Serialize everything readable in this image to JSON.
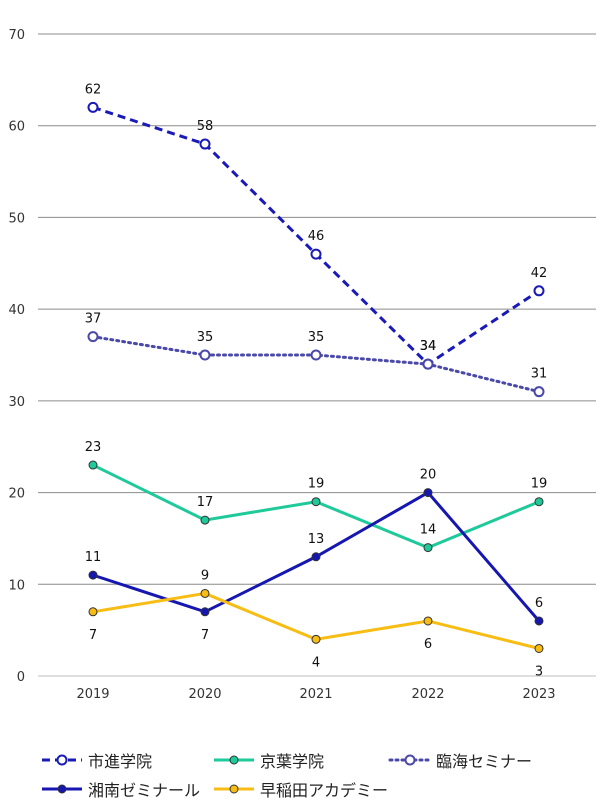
{
  "chart_data": {
    "type": "line",
    "categories": [
      "2019",
      "2020",
      "2021",
      "2022",
      "2023"
    ],
    "ylim": [
      0,
      70
    ],
    "yticks": [
      0,
      10,
      20,
      30,
      40,
      50,
      60,
      70
    ],
    "grid": true,
    "legend_position": "bottom",
    "series": [
      {
        "name": "市進学院",
        "values": [
          62,
          58,
          46,
          34,
          42
        ],
        "color": "#1a1ab8",
        "dash": "dashed",
        "marker": "open-circle"
      },
      {
        "name": "京葉学院",
        "values": [
          23,
          17,
          19,
          14,
          19
        ],
        "color": "#1ec99a",
        "dash": "solid",
        "marker": "filled-circle"
      },
      {
        "name": "臨海セミナー",
        "values": [
          37,
          35,
          35,
          34,
          31
        ],
        "color": "#4a48a8",
        "dash": "dotted",
        "marker": "open-circle"
      },
      {
        "name": "湘南ゼミナール",
        "values": [
          11,
          7,
          13,
          20,
          6
        ],
        "color": "#1616b0",
        "dash": "solid",
        "marker": "filled-circle"
      },
      {
        "name": "早稲田アカデミー",
        "values": [
          7,
          9,
          4,
          6,
          3
        ],
        "color": "#f7bd14",
        "dash": "solid",
        "marker": "filled-circle"
      }
    ]
  }
}
